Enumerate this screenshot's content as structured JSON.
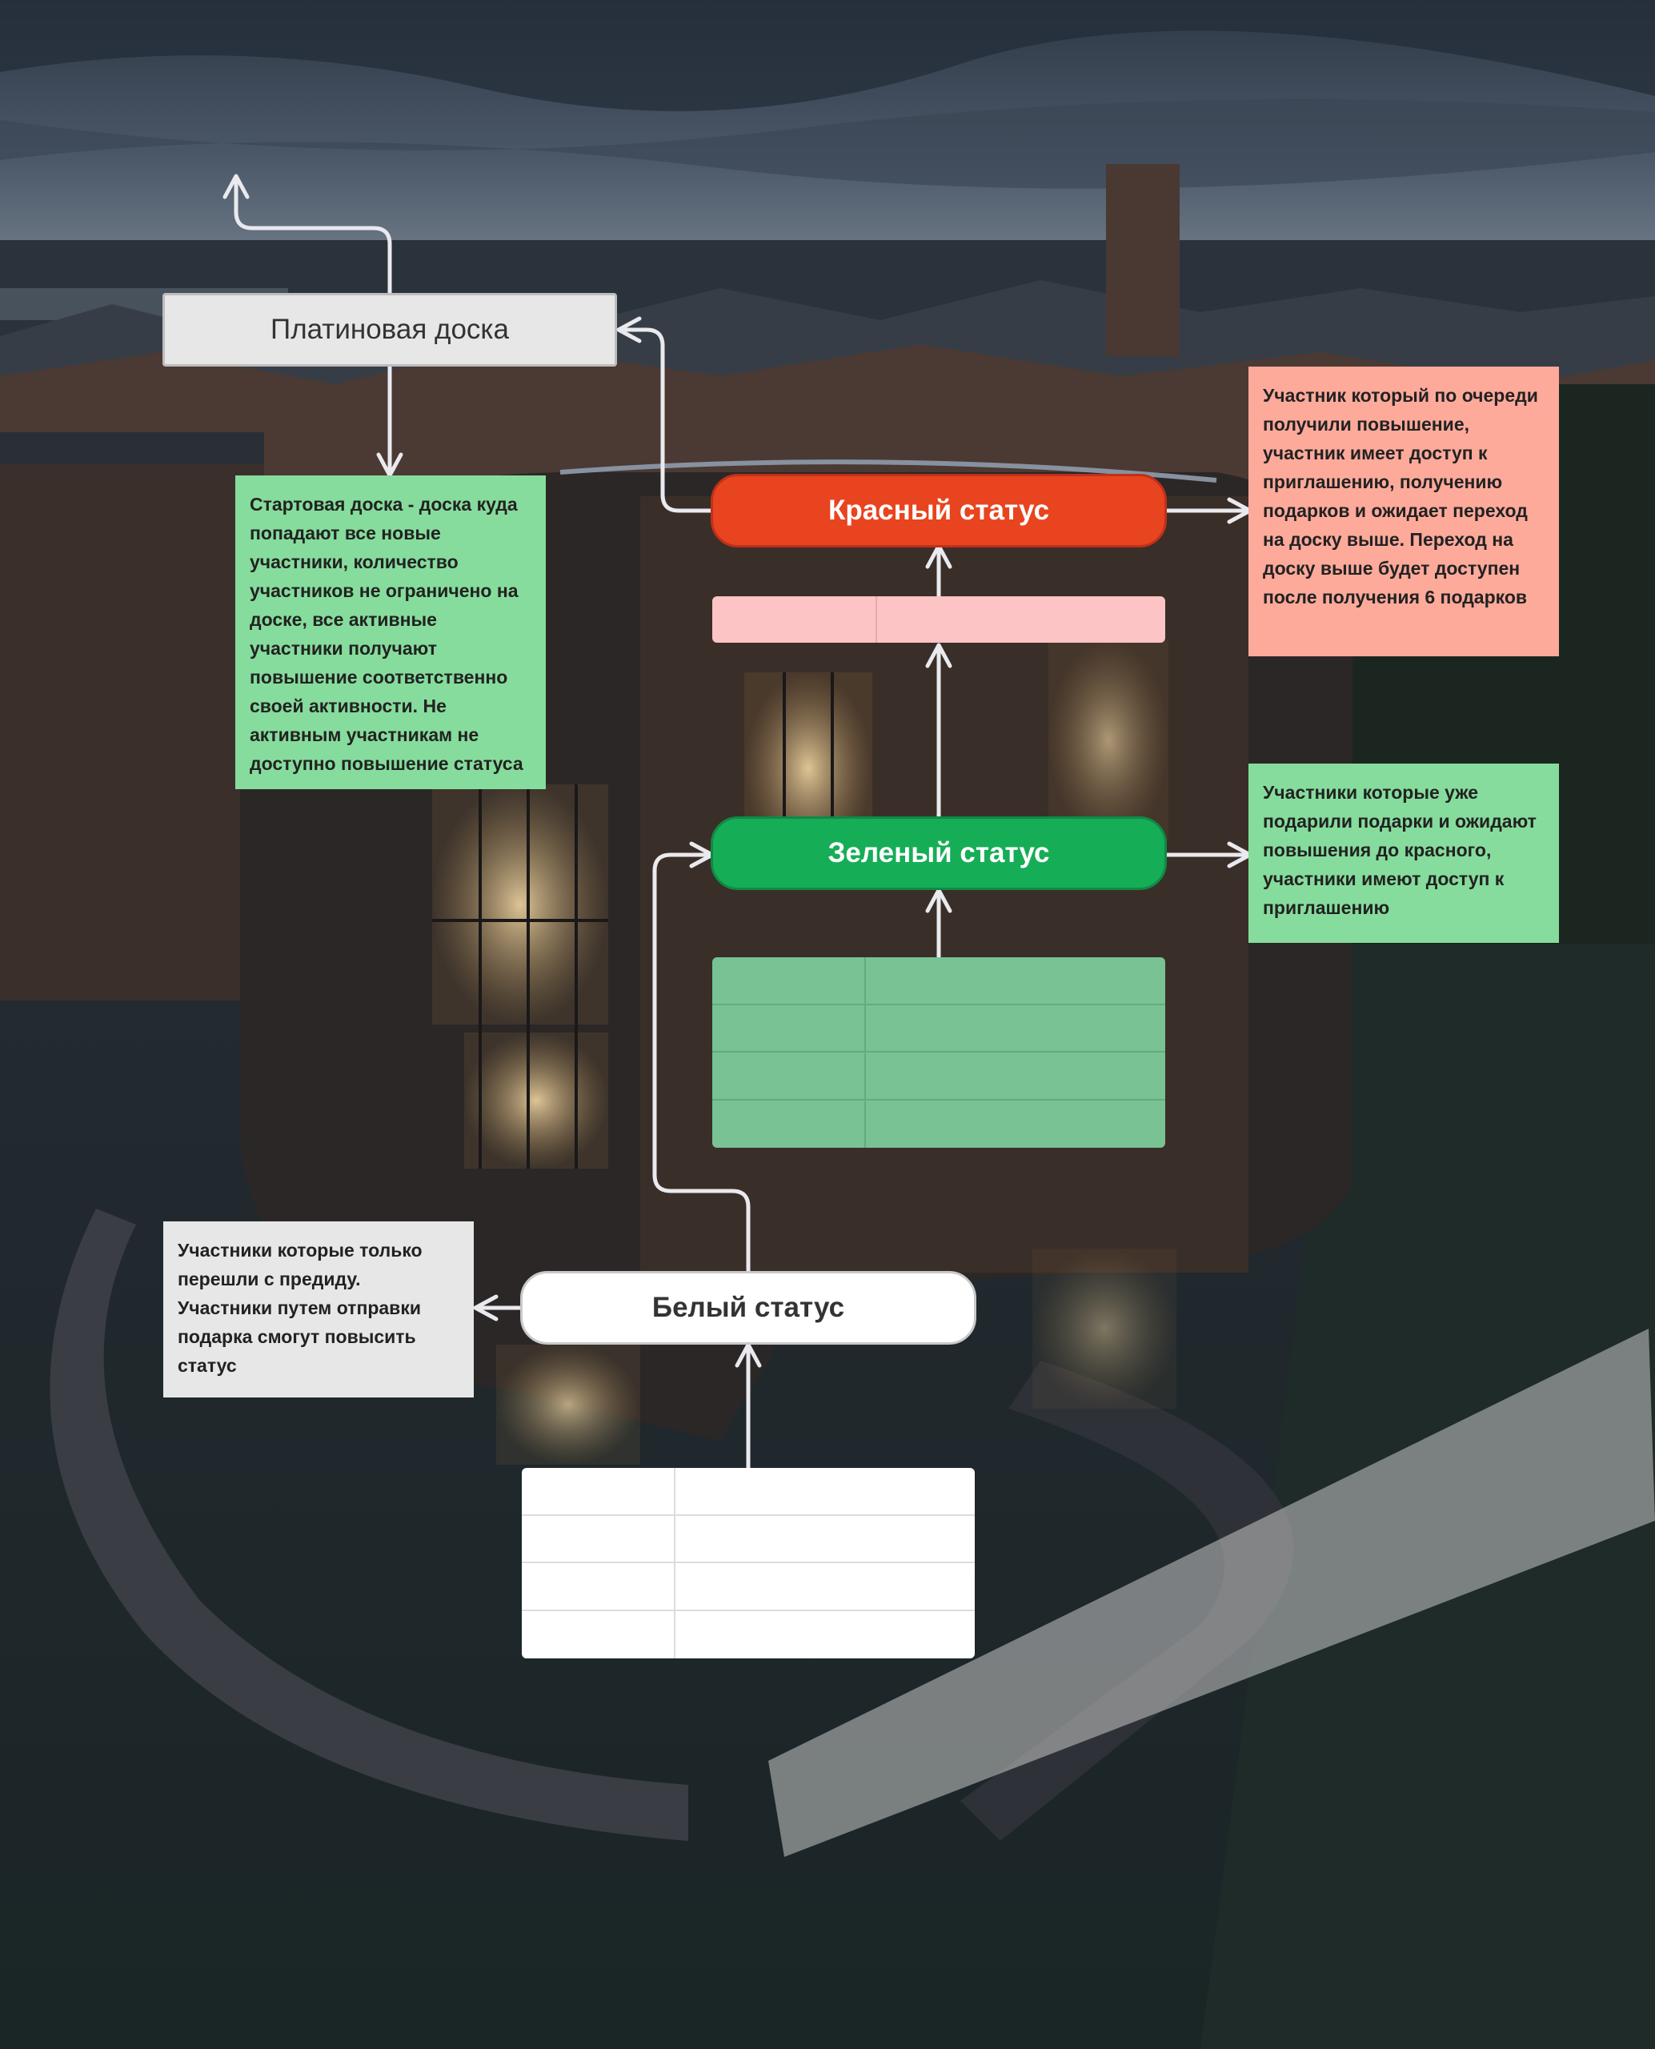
{
  "nodes": {
    "platinum_board": {
      "label": "Платиновая доска"
    },
    "red_status": {
      "label": "Красный статус",
      "color": "#e8441f"
    },
    "green_status": {
      "label": "Зеленый статус",
      "color": "#16ad57"
    },
    "white_status": {
      "label": "Белый статус"
    }
  },
  "notes": {
    "start_board": "Стартовая доска - доска куда попадают все новые участники, количество участников не ограничено на доске, все активные участники получают повышение соответственно своей активности. Не активным участникам не доступно повышение статуса",
    "red_description": "Участник который по очереди получили повышение, участник имеет доступ к приглашению, получению подарков и ожидает переход на доску выше. Переход на доску выше будет доступен после получения 6 подарков",
    "green_description": "Участники которые уже подарили подарки и ожидают повышения до красного, участники имеют доступ к приглашению",
    "white_description": "Участники которые только перешли с предиду. Участники путем отправки подарка смогут повысить статус"
  },
  "colors": {
    "note_green": "#86dc9c",
    "note_red": "#fdaa9b",
    "note_grey": "#e7e7e7",
    "table_pink": "#fcc4c4",
    "table_green": "#78c294",
    "table_white": "#ffffff",
    "arrow": "#e9e9ee"
  }
}
